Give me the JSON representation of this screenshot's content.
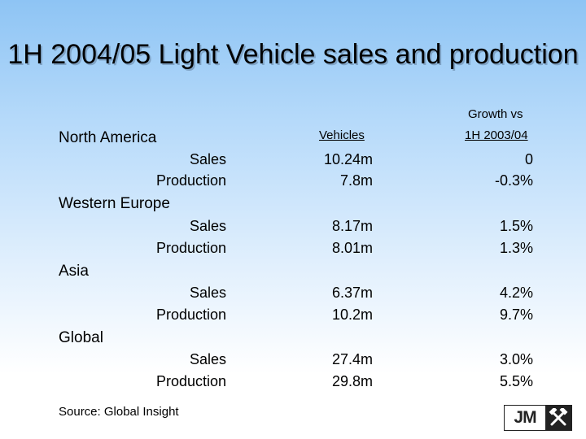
{
  "title": "1H 2004/05 Light Vehicle sales and production",
  "columns": {
    "vehicles": "Vehicles",
    "growth_line1": "Growth vs",
    "growth_line2": "1H 2003/04"
  },
  "regions": [
    {
      "name": "North America",
      "rows": [
        {
          "metric": "Sales",
          "vehicles": "10.24m",
          "growth": "0"
        },
        {
          "metric": "Production",
          "vehicles": "7.8m",
          "growth": "-0.3%"
        }
      ]
    },
    {
      "name": "Western Europe",
      "rows": [
        {
          "metric": "Sales",
          "vehicles": "8.17m",
          "growth": "1.5%"
        },
        {
          "metric": "Production",
          "vehicles": "8.01m",
          "growth": "1.3%"
        }
      ]
    },
    {
      "name": "Asia",
      "rows": [
        {
          "metric": "Sales",
          "vehicles": "6.37m",
          "growth": "4.2%"
        },
        {
          "metric": "Production",
          "vehicles": "10.2m",
          "growth": "9.7%"
        }
      ]
    },
    {
      "name": "Global",
      "rows": [
        {
          "metric": "Sales",
          "vehicles": "27.4m",
          "growth": "3.0%"
        },
        {
          "metric": "Production",
          "vehicles": "29.8m",
          "growth": "5.5%"
        }
      ]
    }
  ],
  "source": "Source: Global Insight",
  "logo": {
    "text": "JM",
    "icon": "crossed-hammers-icon",
    "color": "#222222"
  },
  "colors": {
    "background_top": "#8ec4f4",
    "background_bottom": "#ffffff",
    "title_shadow": "#7fa3c6"
  }
}
